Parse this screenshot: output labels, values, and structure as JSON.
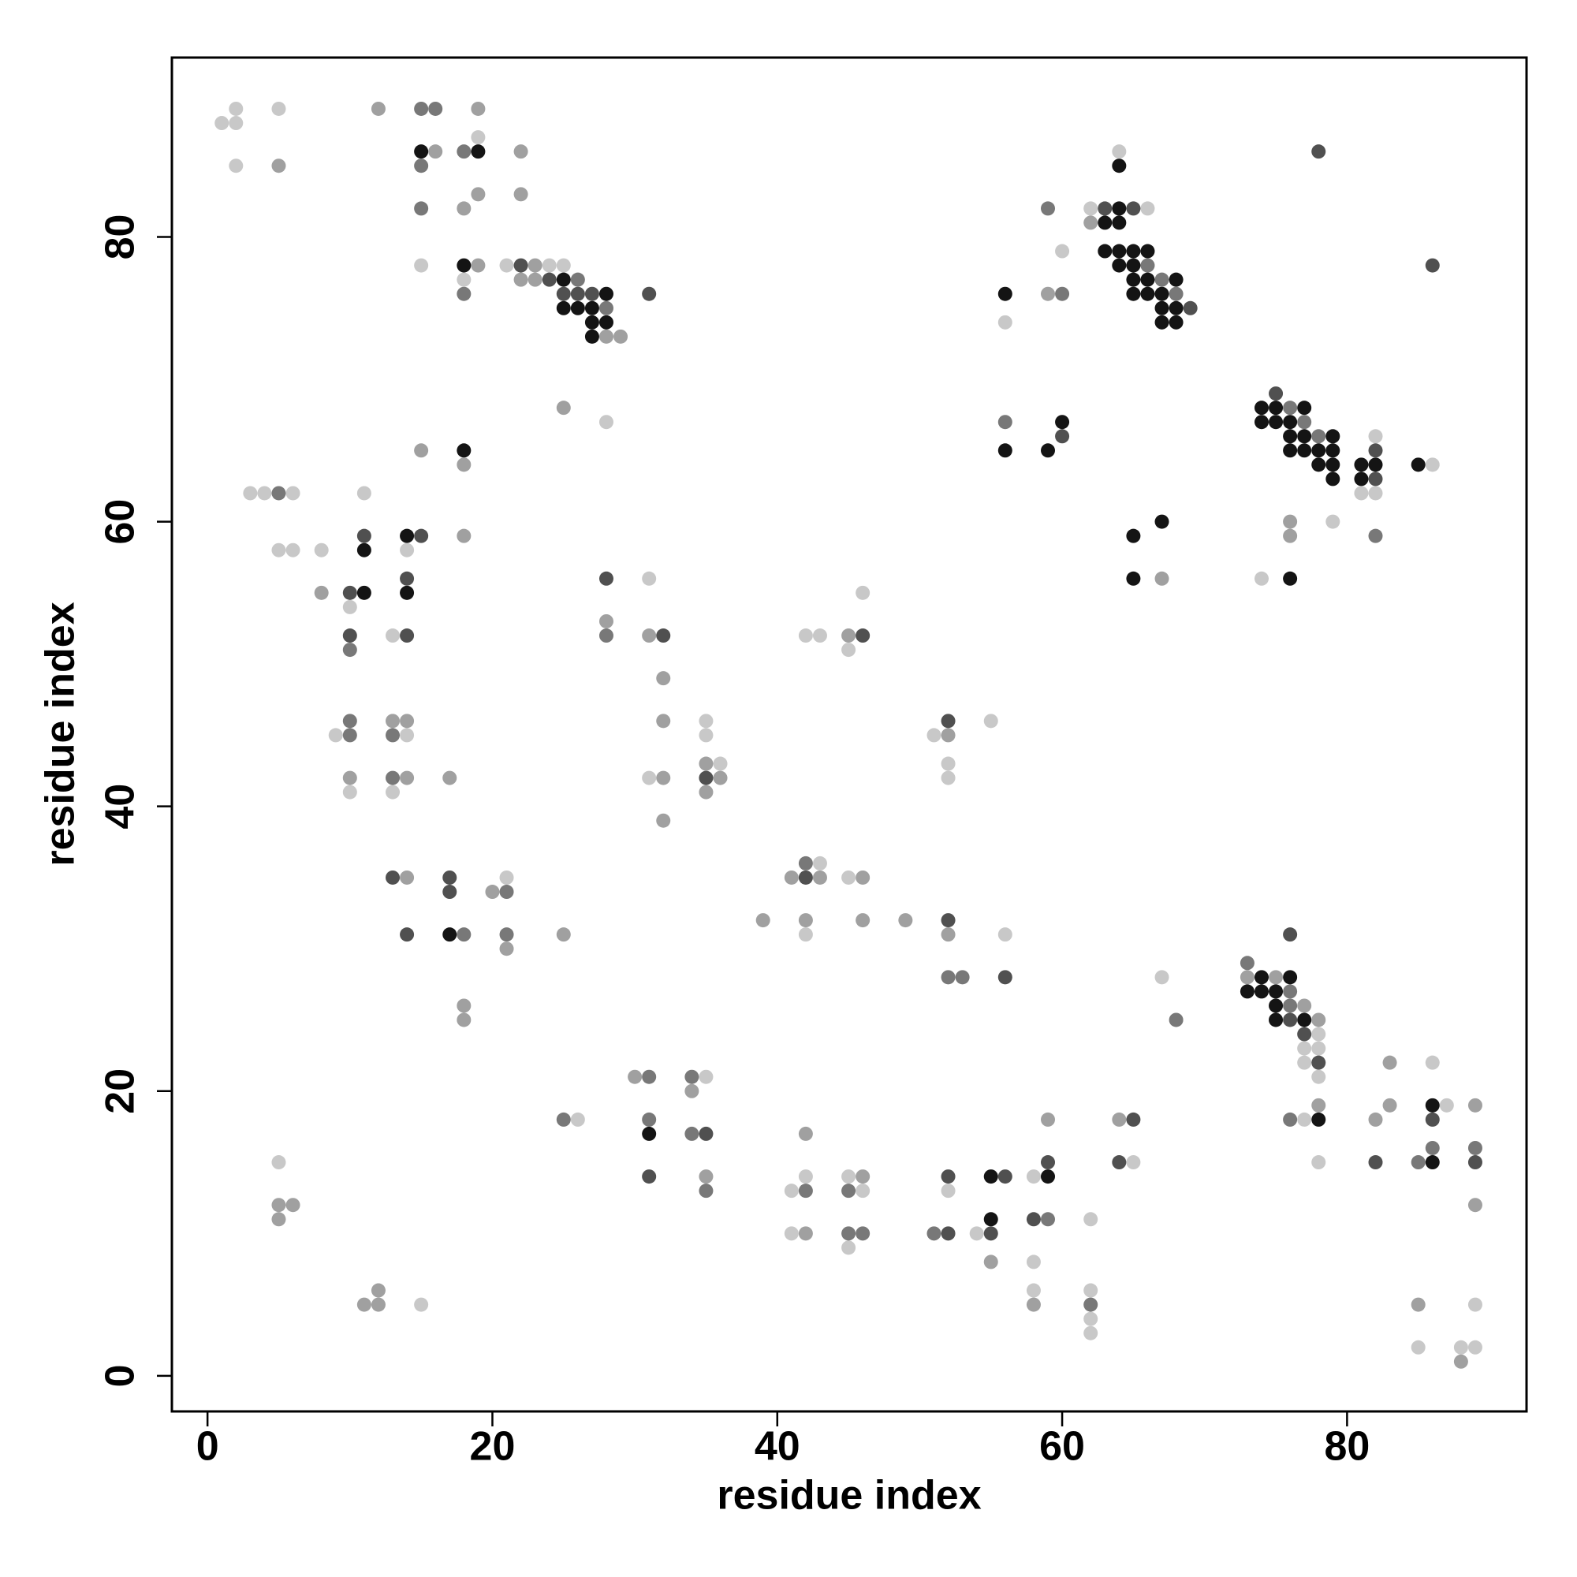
{
  "chart_data": {
    "type": "scatter",
    "xlabel": "residue index",
    "ylabel": "residue index",
    "xlim": [
      -2.5,
      92.6
    ],
    "ylim": [
      -2.5,
      92.6
    ],
    "xticks": [
      0,
      20,
      40,
      60,
      80
    ],
    "yticks": [
      0,
      20,
      40,
      60,
      80
    ],
    "series": [
      {
        "color": "#c8c8c8",
        "x": [
          2,
          5,
          1,
          2,
          19,
          64,
          2,
          62,
          66,
          60,
          15,
          21,
          24,
          25,
          18,
          56,
          28,
          82,
          86,
          3,
          4,
          6,
          11,
          81,
          82,
          79,
          5,
          6,
          8,
          14,
          31,
          74,
          46,
          10,
          13,
          42,
          43,
          45,
          35,
          55,
          9,
          14,
          35,
          51,
          36,
          52,
          31,
          52,
          10,
          13,
          43,
          21,
          45,
          42,
          56,
          67,
          78,
          77,
          78,
          77,
          86,
          35,
          78,
          87,
          26,
          77,
          5,
          65,
          78,
          42,
          45,
          58,
          41,
          46,
          52,
          62,
          41,
          54,
          45,
          58,
          58,
          62,
          15,
          89,
          62,
          62,
          85,
          88,
          89
        ],
        "y": [
          89,
          89,
          88,
          88,
          87,
          86,
          85,
          82,
          82,
          79,
          78,
          78,
          78,
          78,
          77,
          74,
          67,
          66,
          64,
          62,
          62,
          62,
          62,
          62,
          62,
          60,
          58,
          58,
          58,
          58,
          56,
          56,
          55,
          54,
          52,
          52,
          52,
          51,
          46,
          46,
          45,
          45,
          45,
          45,
          43,
          43,
          42,
          42,
          41,
          41,
          36,
          35,
          35,
          31,
          31,
          28,
          24,
          23,
          23,
          22,
          22,
          21,
          21,
          19,
          18,
          18,
          15,
          15,
          15,
          14,
          14,
          14,
          13,
          13,
          13,
          11,
          10,
          10,
          9,
          8,
          6,
          6,
          5,
          5,
          4,
          3,
          2,
          2,
          2
        ]
      },
      {
        "color": "#a0a0a0",
        "x": [
          12,
          19,
          16,
          22,
          5,
          19,
          22,
          18,
          62,
          19,
          23,
          22,
          23,
          59,
          28,
          29,
          25,
          15,
          18,
          76,
          18,
          76,
          67,
          8,
          28,
          31,
          45,
          32,
          13,
          14,
          32,
          52,
          35,
          10,
          14,
          17,
          32,
          36,
          35,
          32,
          14,
          41,
          43,
          46,
          20,
          39,
          42,
          46,
          49,
          25,
          52,
          21,
          73,
          75,
          18,
          77,
          18,
          78,
          83,
          30,
          34,
          78,
          83,
          89,
          59,
          64,
          82,
          42,
          35,
          46,
          5,
          6,
          89,
          5,
          42,
          55,
          12,
          11,
          12,
          58,
          85,
          88
        ],
        "y": [
          89,
          89,
          86,
          86,
          85,
          83,
          83,
          82,
          81,
          78,
          78,
          77,
          77,
          76,
          73,
          73,
          68,
          65,
          64,
          60,
          59,
          59,
          56,
          55,
          53,
          52,
          52,
          49,
          46,
          46,
          46,
          45,
          43,
          42,
          42,
          42,
          42,
          42,
          41,
          39,
          35,
          35,
          35,
          35,
          34,
          32,
          32,
          32,
          32,
          31,
          31,
          30,
          28,
          28,
          26,
          26,
          25,
          25,
          22,
          21,
          20,
          19,
          19,
          19,
          18,
          18,
          18,
          17,
          14,
          14,
          12,
          12,
          12,
          11,
          10,
          8,
          6,
          5,
          5,
          5,
          5,
          1
        ]
      },
      {
        "color": "#787878",
        "x": [
          15,
          16,
          18,
          15,
          15,
          59,
          66,
          26,
          67,
          18,
          60,
          68,
          28,
          76,
          56,
          77,
          78,
          5,
          82,
          28,
          10,
          10,
          10,
          13,
          13,
          42,
          21,
          18,
          21,
          73,
          52,
          53,
          76,
          76,
          68,
          31,
          34,
          25,
          31,
          76,
          34,
          86,
          89,
          85,
          35,
          42,
          45,
          59,
          45,
          46,
          51,
          62
        ],
        "y": [
          89,
          89,
          86,
          85,
          82,
          82,
          78,
          77,
          77,
          76,
          76,
          76,
          75,
          68,
          67,
          67,
          66,
          62,
          59,
          52,
          51,
          46,
          45,
          45,
          42,
          36,
          34,
          31,
          31,
          29,
          28,
          28,
          27,
          26,
          25,
          21,
          21,
          18,
          18,
          18,
          17,
          16,
          16,
          15,
          13,
          13,
          13,
          11,
          10,
          10,
          10,
          5
        ]
      },
      {
        "color": "#505050",
        "x": [
          78,
          63,
          65,
          22,
          86,
          24,
          25,
          26,
          27,
          31,
          69,
          75,
          60,
          82,
          82,
          11,
          15,
          14,
          28,
          10,
          10,
          14,
          32,
          46,
          52,
          35,
          13,
          17,
          42,
          17,
          52,
          14,
          76,
          56,
          76,
          77,
          78,
          65,
          86,
          35,
          59,
          64,
          82,
          89,
          31,
          52,
          56,
          58,
          52,
          55
        ],
        "y": [
          86,
          82,
          82,
          78,
          78,
          77,
          76,
          76,
          76,
          76,
          75,
          69,
          66,
          65,
          63,
          59,
          59,
          56,
          56,
          55,
          52,
          52,
          52,
          52,
          46,
          42,
          35,
          35,
          35,
          34,
          32,
          31,
          31,
          28,
          25,
          24,
          22,
          18,
          18,
          17,
          15,
          15,
          15,
          15,
          14,
          14,
          14,
          11,
          10,
          10
        ]
      },
      {
        "color": "#141414",
        "x": [
          15,
          19,
          64,
          64,
          63,
          64,
          63,
          64,
          65,
          66,
          18,
          64,
          65,
          25,
          65,
          66,
          68,
          28,
          56,
          65,
          66,
          67,
          25,
          26,
          27,
          67,
          68,
          27,
          28,
          67,
          68,
          27,
          74,
          75,
          77,
          60,
          74,
          75,
          76,
          76,
          77,
          79,
          18,
          56,
          59,
          76,
          77,
          78,
          79,
          78,
          79,
          81,
          82,
          85,
          79,
          81,
          67,
          14,
          65,
          11,
          65,
          76,
          11,
          14,
          17,
          74,
          76,
          73,
          74,
          75,
          75,
          75,
          77,
          86,
          78,
          31,
          86,
          55,
          59,
          55
        ],
        "y": [
          86,
          86,
          85,
          82,
          81,
          81,
          79,
          79,
          79,
          79,
          78,
          78,
          78,
          77,
          77,
          77,
          77,
          76,
          76,
          76,
          76,
          76,
          75,
          75,
          75,
          75,
          75,
          74,
          74,
          74,
          74,
          73,
          68,
          68,
          68,
          67,
          67,
          67,
          67,
          66,
          66,
          66,
          65,
          65,
          65,
          65,
          65,
          65,
          65,
          64,
          64,
          64,
          64,
          64,
          63,
          63,
          60,
          59,
          59,
          58,
          56,
          56,
          55,
          55,
          31,
          28,
          28,
          27,
          27,
          27,
          26,
          25,
          25,
          19,
          18,
          17,
          15,
          14,
          14,
          11
        ]
      }
    ]
  }
}
